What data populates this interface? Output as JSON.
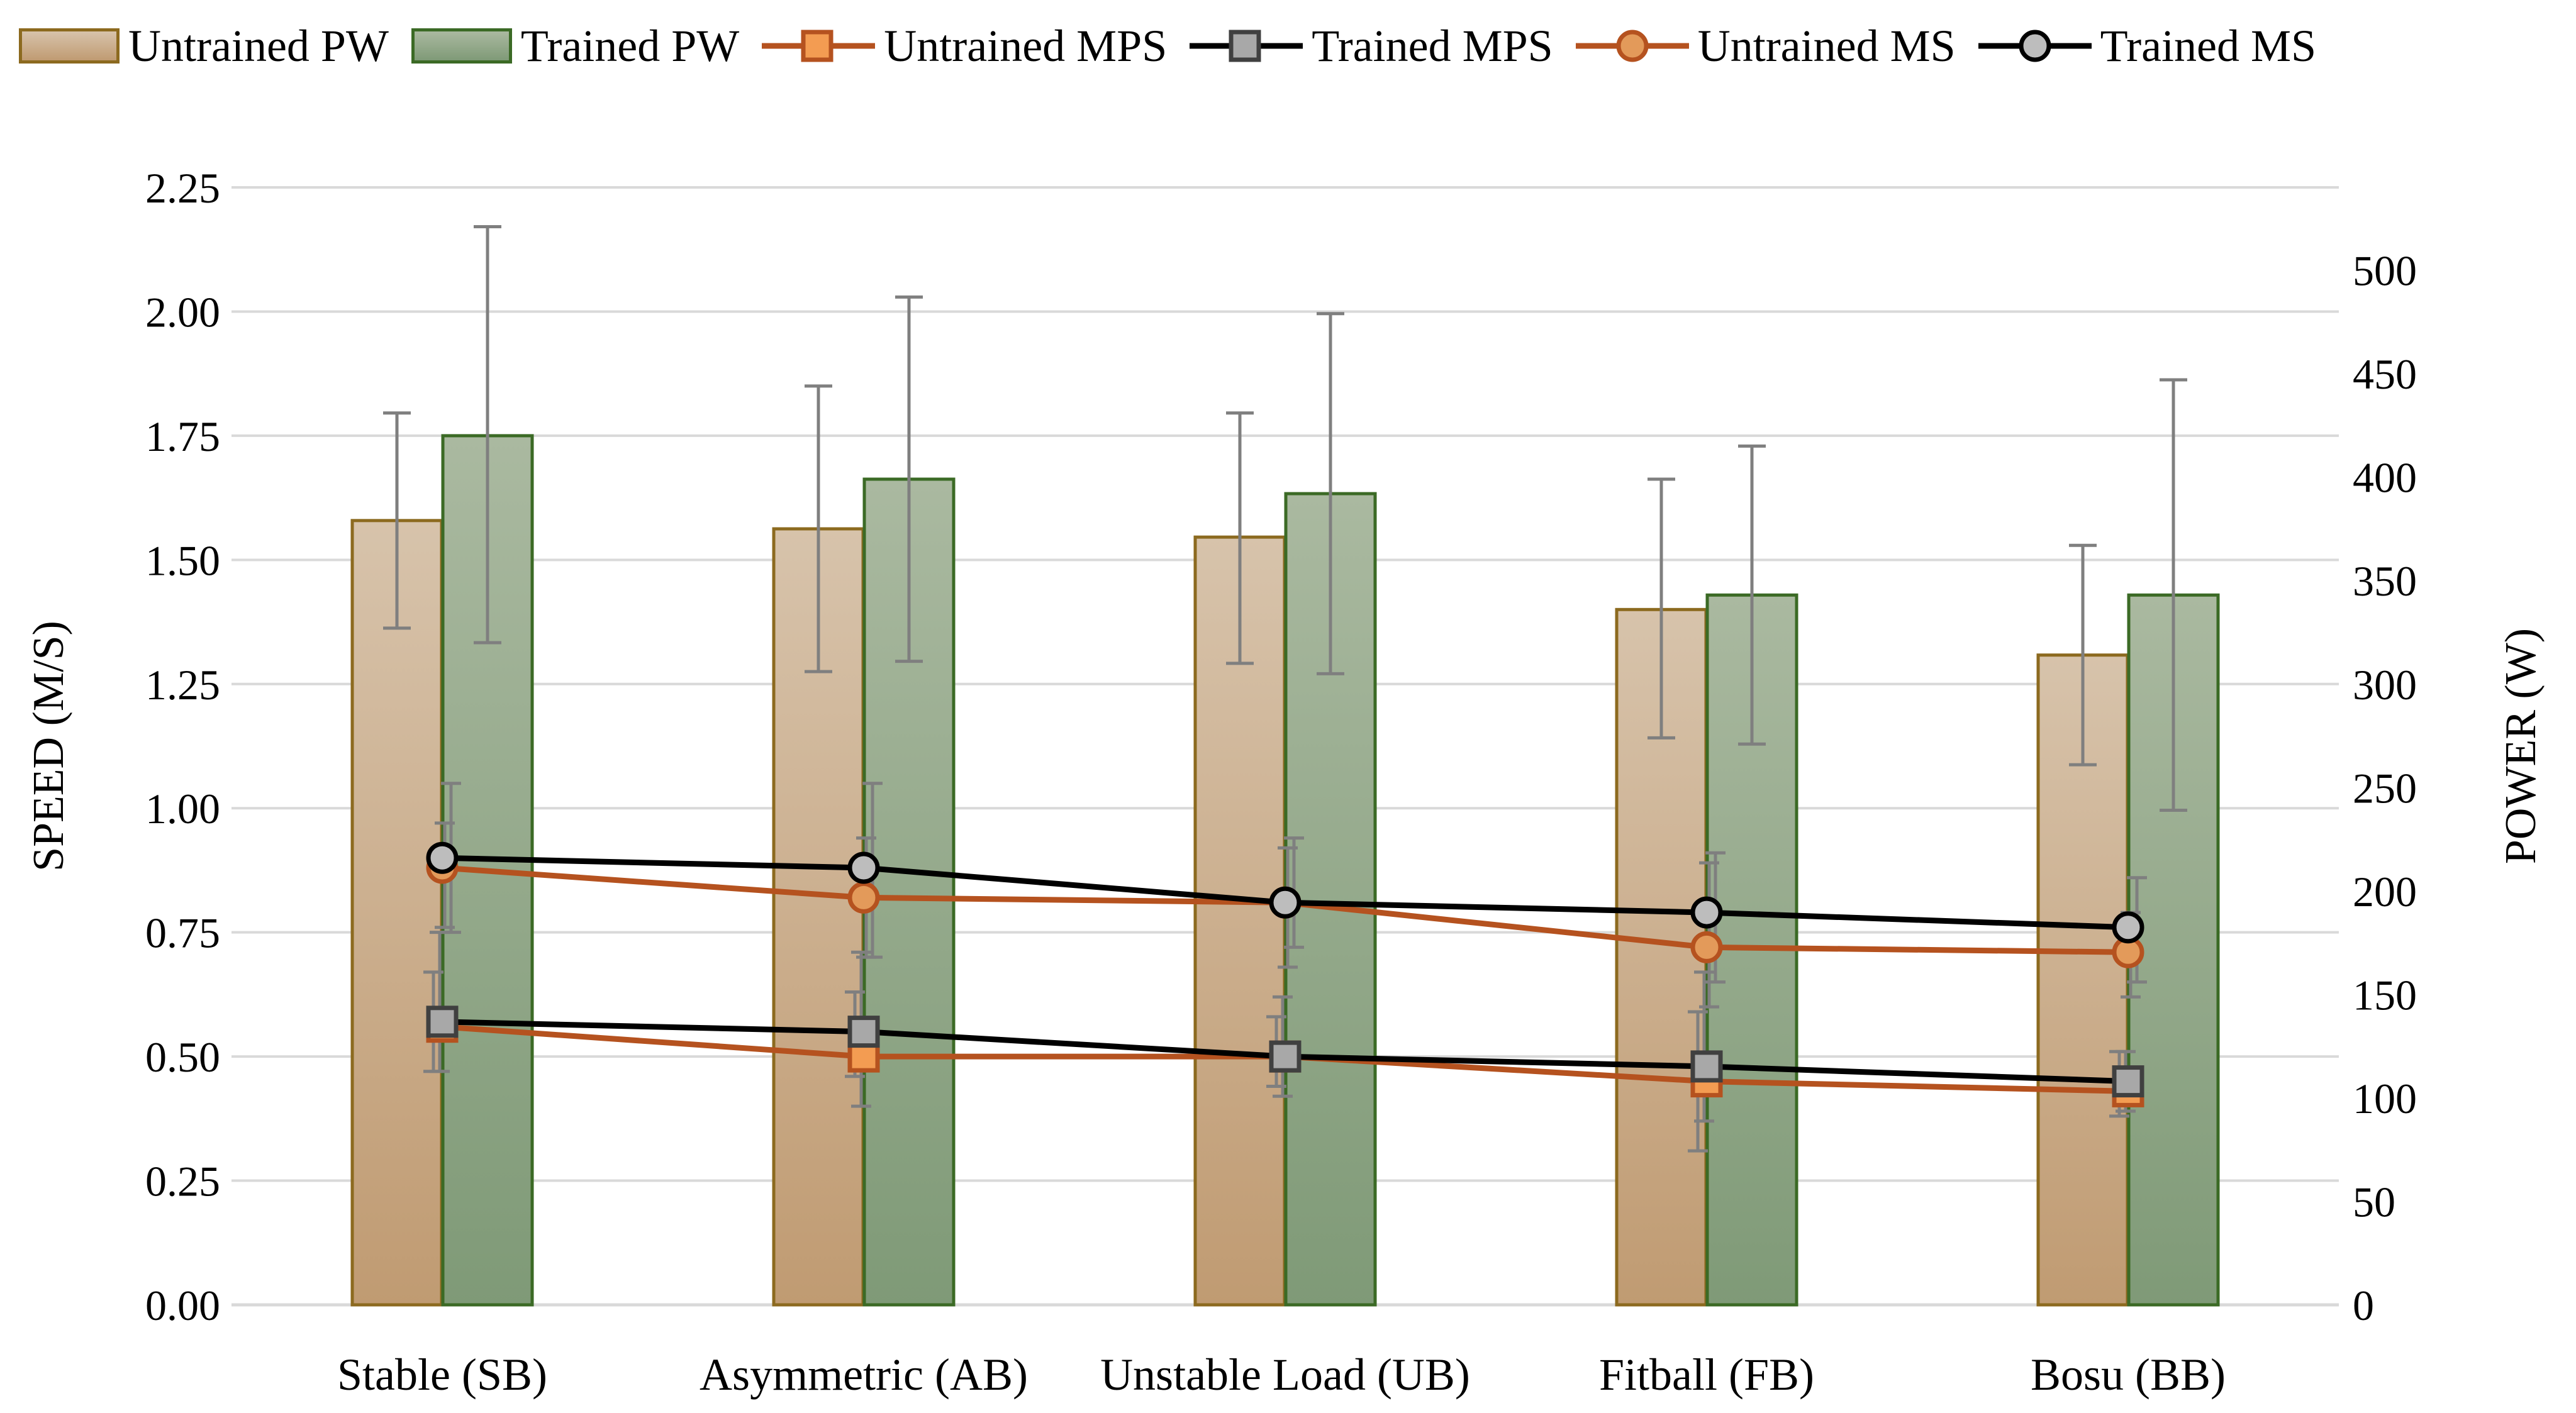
{
  "chart_data": {
    "type": "bar",
    "categories": [
      "Stable (SB)",
      "Asymmetric (AB)",
      "Unstable Load (UB)",
      "Fitball (FB)",
      "Bosu (BB)"
    ],
    "y_left": {
      "label": "SPEED (M/S)",
      "min": 0,
      "max": 2.25,
      "step": 0.25,
      "ticks": [
        "0.00",
        "0.25",
        "0.50",
        "0.75",
        "1.00",
        "1.25",
        "1.50",
        "1.75",
        "2.00",
        "2.25"
      ]
    },
    "y_right": {
      "label": "POWER (W)",
      "min": 0,
      "max": 540,
      "step": 50,
      "ticks": [
        "0",
        "50",
        "100",
        "150",
        "200",
        "250",
        "300",
        "350",
        "400",
        "450",
        "500"
      ]
    },
    "bar_series": [
      {
        "name": "Untrained PW",
        "axis": "right",
        "values": [
          379,
          375,
          371,
          336,
          314
        ],
        "err_low": [
          327,
          306,
          310,
          274,
          261
        ],
        "err_high": [
          431,
          444,
          431,
          399,
          367
        ]
      },
      {
        "name": "Trained PW",
        "axis": "right",
        "values": [
          420,
          399,
          392,
          343,
          343
        ],
        "err_low": [
          320,
          311,
          305,
          271,
          239
        ],
        "err_high": [
          521,
          487,
          479,
          415,
          447
        ]
      }
    ],
    "line_series": [
      {
        "name": "Untrained MPS",
        "axis": "left",
        "marker": "square",
        "values": [
          0.56,
          0.5,
          0.5,
          0.45,
          0.43
        ],
        "err_low": [
          0.47,
          0.46,
          0.44,
          0.31,
          0.38
        ],
        "err_high": [
          0.67,
          0.63,
          0.58,
          0.59,
          0.51
        ]
      },
      {
        "name": "Trained MPS",
        "axis": "left",
        "marker": "square",
        "values": [
          0.57,
          0.55,
          0.5,
          0.48,
          0.45
        ],
        "err_low": [
          0.47,
          0.4,
          0.42,
          0.37,
          0.39
        ],
        "err_high": [
          0.75,
          0.71,
          0.62,
          0.67,
          0.51
        ]
      },
      {
        "name": "Untrained MS",
        "axis": "left",
        "marker": "circle",
        "values": [
          0.88,
          0.82,
          0.81,
          0.72,
          0.71
        ],
        "err_low": [
          0.76,
          0.7,
          0.68,
          0.6,
          0.62
        ],
        "err_high": [
          0.97,
          0.94,
          0.92,
          0.89,
          0.79
        ]
      },
      {
        "name": "Trained MS",
        "axis": "left",
        "marker": "circle",
        "values": [
          0.9,
          0.88,
          0.81,
          0.79,
          0.76
        ],
        "err_low": [
          0.75,
          0.7,
          0.72,
          0.65,
          0.65
        ],
        "err_high": [
          1.05,
          1.05,
          0.94,
          0.91,
          0.86
        ]
      }
    ],
    "legend": [
      "Untrained PW",
      "Trained PW",
      "Untrained MPS",
      "Trained MPS",
      "Untrained MS",
      "Trained MS"
    ],
    "legend_position": "top",
    "grid": true,
    "colors": {
      "untrained_bar_top": "#d7c3ab",
      "untrained_bar_bottom": "#c09b72",
      "untrained_bar_border": "#8c6a1f",
      "trained_bar_top": "#aab9a0",
      "trained_bar_bottom": "#7f9a77",
      "trained_bar_border": "#3b6a25",
      "untrained_line": "#b5521f",
      "trained_line": "#000000",
      "untrained_mps_fill": "#f39c52",
      "trained_mps_fill": "#a8a8a8",
      "untrained_ms_fill": "#e39a5a",
      "trained_ms_fill": "#bdbdbd",
      "error_bar": "#7f7f7f",
      "grid": "#d9d9d9"
    }
  }
}
